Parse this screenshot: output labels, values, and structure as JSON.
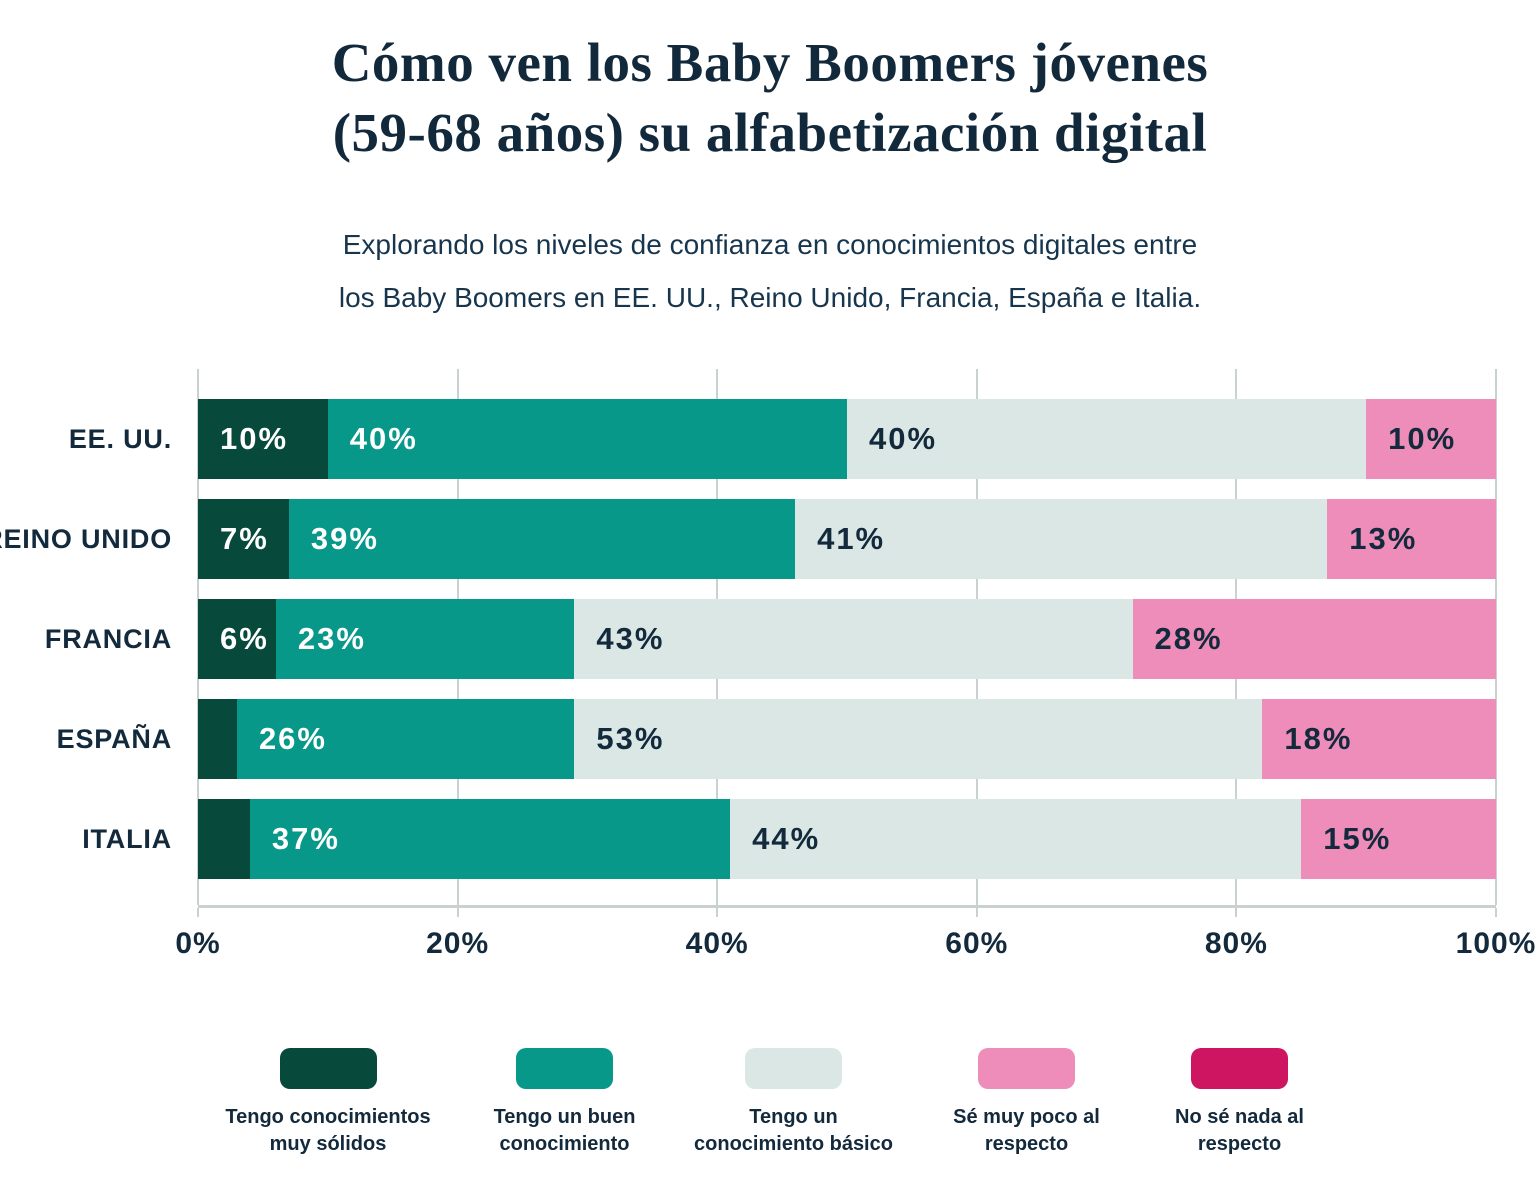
{
  "title": {
    "line1": "Cómo ven los Baby Boomers jóvenes",
    "line2": "(59-68 años) su alfabetización digital"
  },
  "subtitle": {
    "line1": "Explorando los niveles de confianza en conocimientos digitales entre",
    "line2": "los Baby Boomers en EE. UU., Reino Unido, Francia, España e Italia."
  },
  "colors": {
    "text_navy": "#13293c",
    "grid": "#c9d2d0",
    "background": "#ffffff"
  },
  "chart_data": {
    "type": "bar",
    "orientation": "horizontal",
    "stacked": true,
    "grid": true,
    "legend_position": "bottom",
    "categories": [
      "EE. UU.",
      "REINO UNIDO",
      "FRANCIA",
      "ESPAÑA",
      "ITALIA"
    ],
    "series": [
      {
        "name": "Tengo conocimientos muy sólidos",
        "color": "#07493b",
        "label_color": "#ffffff",
        "values": [
          10,
          7,
          6,
          3,
          4
        ]
      },
      {
        "name": "Tengo un buen conocimiento",
        "color": "#07988a",
        "label_color": "#ffffff",
        "values": [
          40,
          39,
          23,
          26,
          37
        ]
      },
      {
        "name": "Tengo un conocimiento básico",
        "color": "#dbe7e4",
        "label_color": "#13293c",
        "values": [
          40,
          41,
          43,
          53,
          44
        ]
      },
      {
        "name": "Sé muy poco al respecto",
        "color": "#ee8db9",
        "label_color": "#13293c",
        "values": [
          10,
          13,
          28,
          18,
          15
        ]
      },
      {
        "name": "No sé nada al respecto",
        "color": "#ce1562",
        "label_color": "#ffffff",
        "values": [
          0,
          0,
          0,
          0,
          0
        ]
      }
    ],
    "segment_labels": [
      [
        "10%",
        "40%",
        "40%",
        "10%",
        ""
      ],
      [
        "7%",
        "39%",
        "41%",
        "13%",
        ""
      ],
      [
        "6%",
        "23%",
        "43%",
        "28%",
        ""
      ],
      [
        "",
        "26%",
        "53%",
        "18%",
        ""
      ],
      [
        "",
        "37%",
        "44%",
        "15%",
        ""
      ]
    ],
    "x_axis": {
      "min": 0,
      "max": 100,
      "tick_values": [
        0,
        20,
        40,
        60,
        80,
        100
      ],
      "tick_labels": [
        "0%",
        "20%",
        "40%",
        "60%",
        "80%",
        "100%"
      ]
    }
  }
}
